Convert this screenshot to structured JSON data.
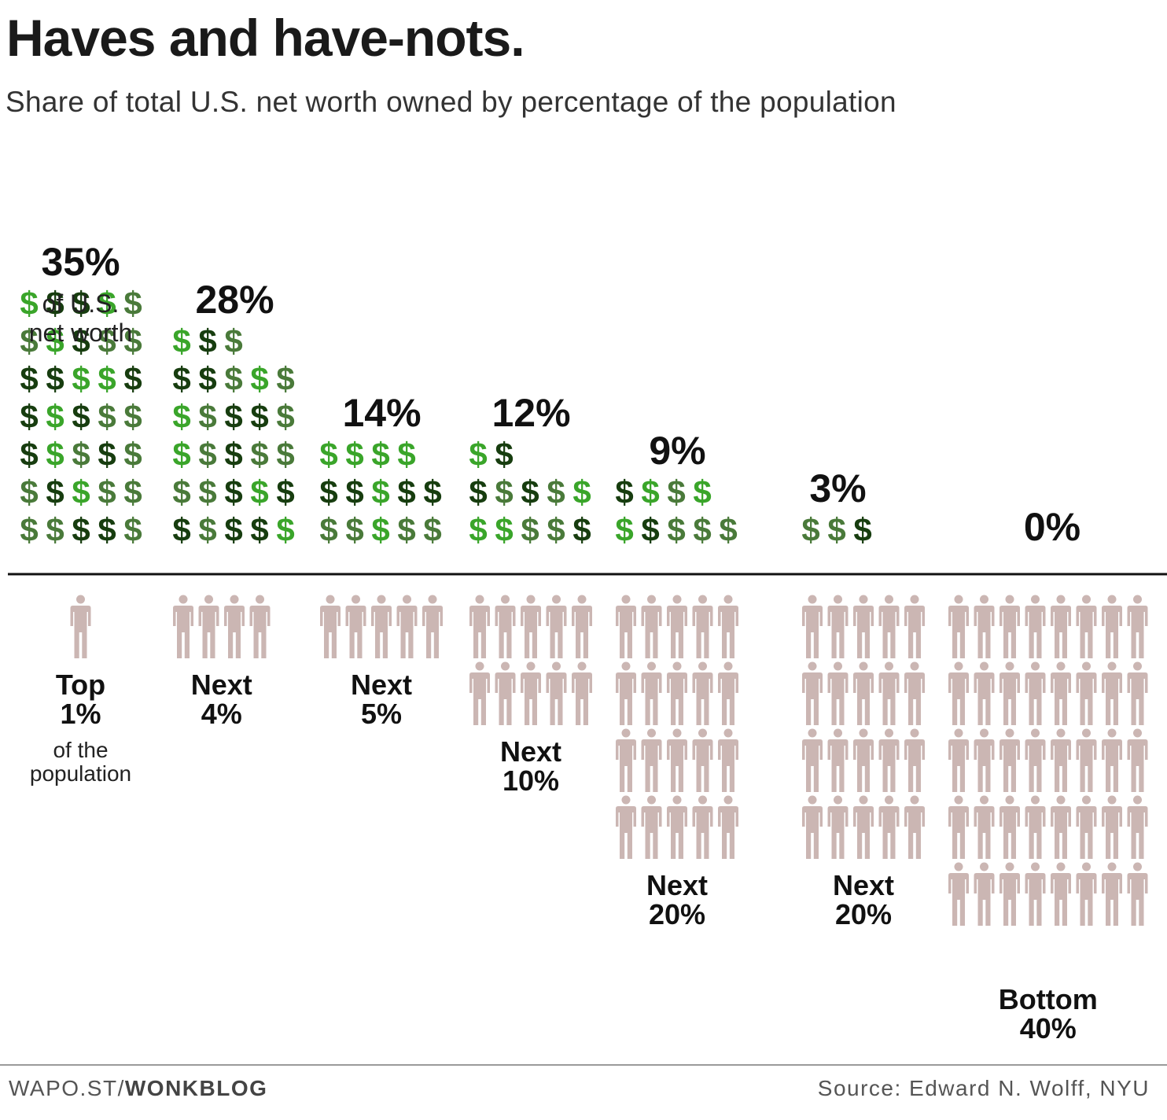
{
  "title": "Haves and have-nots.",
  "subtitle": "Share of total U.S. net worth owned by percentage of the population",
  "footer": {
    "site_prefix": "WAPO.ST/",
    "site_bold": "WONKBLOG",
    "source": "Source: Edward N. Wolff, NYU"
  },
  "colors": {
    "dollar_dark": "#173d0f",
    "dollar_mid": "#4a7a3a",
    "dollar_light": "#3aa52a",
    "person": "#cbb6b3",
    "axis": "#111111"
  },
  "chart_data": {
    "type": "pictogram",
    "unit": "% of U.S. net worth",
    "value_note": "of U.S. net worth",
    "population_note": "of the population",
    "categories": [
      {
        "label_line1": "Top",
        "label_line2": "1%",
        "population_pct": 1,
        "net_worth_pct": 35,
        "value_label": "35%"
      },
      {
        "label_line1": "Next",
        "label_line2": "4%",
        "population_pct": 4,
        "net_worth_pct": 28,
        "value_label": "28%"
      },
      {
        "label_line1": "Next",
        "label_line2": "5%",
        "population_pct": 5,
        "net_worth_pct": 14,
        "value_label": "14%"
      },
      {
        "label_line1": "Next",
        "label_line2": "10%",
        "population_pct": 10,
        "net_worth_pct": 12,
        "value_label": "12%"
      },
      {
        "label_line1": "Next",
        "label_line2": "20%",
        "population_pct": 20,
        "net_worth_pct": 9,
        "value_label": "9%"
      },
      {
        "label_line1": "Next",
        "label_line2": "20%",
        "population_pct": 20,
        "net_worth_pct": 3,
        "value_label": "3%"
      },
      {
        "label_line1": "Bottom",
        "label_line2": "40%",
        "population_pct": 40,
        "net_worth_pct": 0,
        "value_label": "0%"
      }
    ]
  }
}
